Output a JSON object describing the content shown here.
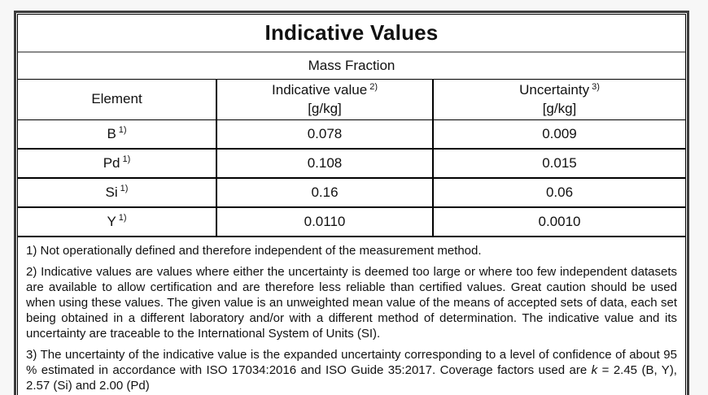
{
  "colors": {
    "page_background": "#f7f7f7",
    "table_background": "#ffffff",
    "border": "#000000",
    "title_rule": "#8a8a8a"
  },
  "table": {
    "title": "Indicative Values",
    "subtitle": "Mass Fraction",
    "columns": {
      "element_label": "Element",
      "indicative_label": "Indicative value",
      "indicative_sup": "2)",
      "indicative_unit": "[g/kg]",
      "uncertainty_label": "Uncertainty",
      "uncertainty_sup": "3)",
      "uncertainty_unit": "[g/kg]"
    },
    "rows": [
      {
        "element": "B",
        "element_sup": "1)",
        "indicative_value": "0.078",
        "uncertainty": "0.009"
      },
      {
        "element": "Pd",
        "element_sup": "1)",
        "indicative_value": "0.108",
        "uncertainty": "0.015"
      },
      {
        "element": "Si",
        "element_sup": "1)",
        "indicative_value": "0.16",
        "uncertainty": "0.06"
      },
      {
        "element": "Y",
        "element_sup": "1)",
        "indicative_value": "0.0110",
        "uncertainty": "0.0010"
      }
    ],
    "footnotes": {
      "note1": "1) Not operationally defined and therefore independent of the measurement method.",
      "note2": "2) Indicative values are values where either the uncertainty is deemed too large or where too few independent datasets are available to allow certification and are therefore less reliable than certified values. Great caution should be used when using these values. The given value is an unweighted mean value of the means of accepted sets of data, each set being obtained in a different laboratory and/or with a different method of determination. The indicative value and its uncertainty are traceable to the International System of Units (SI).",
      "note3_before_k": "3) The uncertainty of the indicative value is the expanded uncertainty corresponding to a level of confidence of about 95 % estimated in accordance with ISO 17034:2016 and ISO Guide 35:2017. Coverage factors used are ",
      "note3_k": "k",
      "note3_after_k": " = 2.45 (B, Y), 2.57 (Si) and 2.00 (Pd)"
    }
  }
}
